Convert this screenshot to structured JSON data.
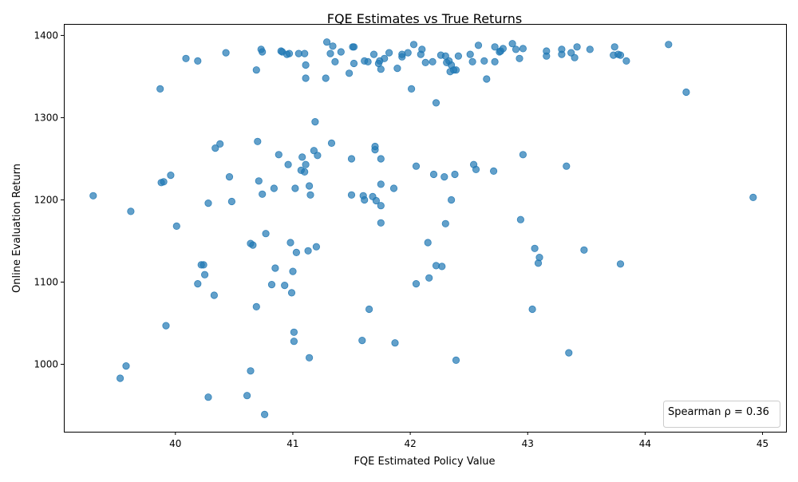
{
  "chart_data": {
    "type": "scatter",
    "title": "FQE Estimates vs True Returns",
    "xlabel": "FQE Estimated Policy Value",
    "ylabel": "Online Evaluation Return",
    "xlim": [
      39.05,
      45.2
    ],
    "ylim": [
      918,
      1414
    ],
    "xticks": [
      40,
      41,
      42,
      43,
      44,
      45
    ],
    "yticks": [
      1000,
      1100,
      1200,
      1300,
      1400
    ],
    "grid": false,
    "legend": "lower-right",
    "annotation": "Spearman ρ = 0.36",
    "marker_color": "#1f77b4",
    "points": [
      [
        39.3,
        1205
      ],
      [
        39.53,
        983
      ],
      [
        39.58,
        998
      ],
      [
        39.62,
        1186
      ],
      [
        39.87,
        1335
      ],
      [
        39.88,
        1221
      ],
      [
        39.9,
        1222
      ],
      [
        39.92,
        1047
      ],
      [
        39.96,
        1230
      ],
      [
        40.01,
        1168
      ],
      [
        40.09,
        1372
      ],
      [
        40.19,
        1369
      ],
      [
        40.19,
        1098
      ],
      [
        40.22,
        1121
      ],
      [
        40.24,
        1121
      ],
      [
        40.25,
        1109
      ],
      [
        40.28,
        960
      ],
      [
        40.28,
        1196
      ],
      [
        40.33,
        1084
      ],
      [
        40.34,
        1263
      ],
      [
        40.38,
        1268
      ],
      [
        40.43,
        1379
      ],
      [
        40.46,
        1228
      ],
      [
        40.48,
        1198
      ],
      [
        40.61,
        962
      ],
      [
        40.64,
        992
      ],
      [
        40.64,
        1147
      ],
      [
        40.66,
        1145
      ],
      [
        40.69,
        1358
      ],
      [
        40.69,
        1070
      ],
      [
        40.7,
        1271
      ],
      [
        40.71,
        1223
      ],
      [
        40.73,
        1383
      ],
      [
        40.74,
        1380
      ],
      [
        40.74,
        1207
      ],
      [
        40.76,
        939
      ],
      [
        40.77,
        1159
      ],
      [
        40.82,
        1097
      ],
      [
        40.84,
        1214
      ],
      [
        40.85,
        1117
      ],
      [
        40.88,
        1255
      ],
      [
        40.9,
        1381
      ],
      [
        40.91,
        1380
      ],
      [
        40.93,
        1096
      ],
      [
        40.95,
        1377
      ],
      [
        40.96,
        1243
      ],
      [
        40.97,
        1378
      ],
      [
        40.98,
        1148
      ],
      [
        40.99,
        1087
      ],
      [
        41.0,
        1113
      ],
      [
        41.01,
        1039
      ],
      [
        41.01,
        1028
      ],
      [
        41.02,
        1214
      ],
      [
        41.03,
        1136
      ],
      [
        41.05,
        1378
      ],
      [
        41.07,
        1236
      ],
      [
        41.08,
        1252
      ],
      [
        41.1,
        1234
      ],
      [
        41.1,
        1378
      ],
      [
        41.11,
        1364
      ],
      [
        41.11,
        1348
      ],
      [
        41.11,
        1243
      ],
      [
        41.13,
        1138
      ],
      [
        41.14,
        1008
      ],
      [
        41.14,
        1217
      ],
      [
        41.15,
        1206
      ],
      [
        41.18,
        1260
      ],
      [
        41.19,
        1295
      ],
      [
        41.2,
        1143
      ],
      [
        41.21,
        1254
      ],
      [
        41.28,
        1348
      ],
      [
        41.29,
        1392
      ],
      [
        41.32,
        1378
      ],
      [
        41.33,
        1269
      ],
      [
        41.34,
        1387
      ],
      [
        41.36,
        1368
      ],
      [
        41.41,
        1380
      ],
      [
        41.48,
        1354
      ],
      [
        41.5,
        1250
      ],
      [
        41.5,
        1206
      ],
      [
        41.51,
        1386
      ],
      [
        41.52,
        1386
      ],
      [
        41.52,
        1366
      ],
      [
        41.59,
        1029
      ],
      [
        41.6,
        1205
      ],
      [
        41.61,
        1369
      ],
      [
        41.61,
        1200
      ],
      [
        41.64,
        1368
      ],
      [
        41.65,
        1067
      ],
      [
        41.68,
        1204
      ],
      [
        41.69,
        1377
      ],
      [
        41.7,
        1261
      ],
      [
        41.7,
        1265
      ],
      [
        41.71,
        1199
      ],
      [
        41.73,
        1366
      ],
      [
        41.74,
        1369
      ],
      [
        41.75,
        1359
      ],
      [
        41.75,
        1250
      ],
      [
        41.75,
        1219
      ],
      [
        41.75,
        1172
      ],
      [
        41.75,
        1193
      ],
      [
        41.78,
        1372
      ],
      [
        41.82,
        1379
      ],
      [
        41.86,
        1214
      ],
      [
        41.87,
        1026
      ],
      [
        41.89,
        1360
      ],
      [
        41.93,
        1374
      ],
      [
        41.93,
        1377
      ],
      [
        41.98,
        1379
      ],
      [
        42.01,
        1335
      ],
      [
        42.03,
        1389
      ],
      [
        42.05,
        1241
      ],
      [
        42.05,
        1098
      ],
      [
        42.09,
        1377
      ],
      [
        42.1,
        1383
      ],
      [
        42.13,
        1367
      ],
      [
        42.15,
        1148
      ],
      [
        42.16,
        1105
      ],
      [
        42.19,
        1368
      ],
      [
        42.2,
        1231
      ],
      [
        42.22,
        1318
      ],
      [
        42.22,
        1120
      ],
      [
        42.26,
        1376
      ],
      [
        42.27,
        1119
      ],
      [
        42.29,
        1228
      ],
      [
        42.3,
        1171
      ],
      [
        42.3,
        1375
      ],
      [
        42.31,
        1367
      ],
      [
        42.33,
        1369
      ],
      [
        42.34,
        1356
      ],
      [
        42.35,
        1364
      ],
      [
        42.35,
        1200
      ],
      [
        42.37,
        1358
      ],
      [
        42.38,
        1231
      ],
      [
        42.39,
        1005
      ],
      [
        42.39,
        1358
      ],
      [
        42.41,
        1375
      ],
      [
        42.51,
        1377
      ],
      [
        42.53,
        1368
      ],
      [
        42.54,
        1243
      ],
      [
        42.56,
        1237
      ],
      [
        42.58,
        1388
      ],
      [
        42.63,
        1369
      ],
      [
        42.65,
        1347
      ],
      [
        42.71,
        1235
      ],
      [
        42.72,
        1386
      ],
      [
        42.72,
        1368
      ],
      [
        42.76,
        1380
      ],
      [
        42.77,
        1381
      ],
      [
        42.79,
        1384
      ],
      [
        42.87,
        1390
      ],
      [
        42.9,
        1383
      ],
      [
        42.93,
        1372
      ],
      [
        42.94,
        1176
      ],
      [
        42.96,
        1384
      ],
      [
        42.96,
        1255
      ],
      [
        43.04,
        1067
      ],
      [
        43.06,
        1141
      ],
      [
        43.09,
        1123
      ],
      [
        43.1,
        1130
      ],
      [
        43.16,
        1381
      ],
      [
        43.16,
        1375
      ],
      [
        43.29,
        1377
      ],
      [
        43.29,
        1383
      ],
      [
        43.33,
        1241
      ],
      [
        43.35,
        1014
      ],
      [
        43.37,
        1379
      ],
      [
        43.4,
        1373
      ],
      [
        43.42,
        1386
      ],
      [
        43.48,
        1139
      ],
      [
        43.53,
        1383
      ],
      [
        43.73,
        1376
      ],
      [
        43.74,
        1386
      ],
      [
        43.77,
        1377
      ],
      [
        43.79,
        1122
      ],
      [
        43.79,
        1376
      ],
      [
        43.84,
        1369
      ],
      [
        44.2,
        1389
      ],
      [
        44.35,
        1331
      ],
      [
        44.92,
        1203
      ]
    ]
  }
}
